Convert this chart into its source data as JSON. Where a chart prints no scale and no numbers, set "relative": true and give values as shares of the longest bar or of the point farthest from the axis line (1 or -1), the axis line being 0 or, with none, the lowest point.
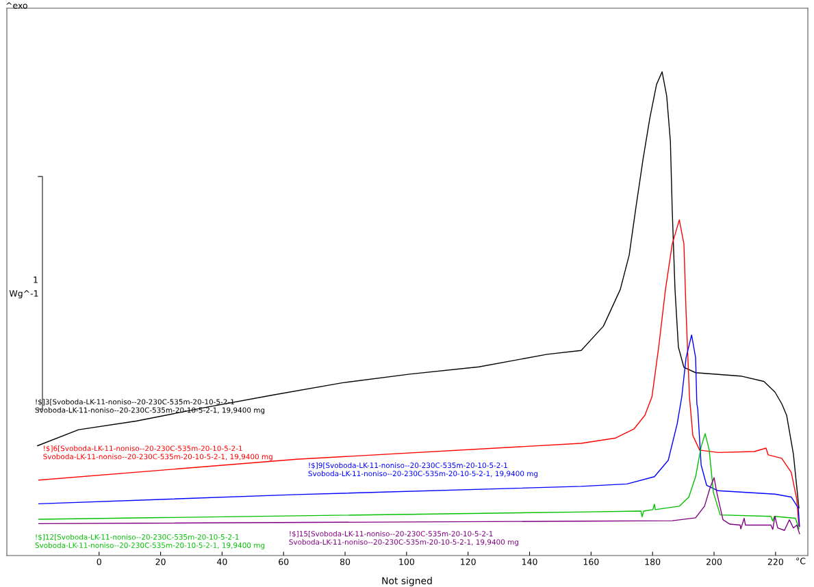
{
  "chart_data": {
    "type": "line",
    "relative": true,
    "xlabel": "°C",
    "grid": false,
    "legend": false,
    "marker": "none",
    "line_style": "solid",
    "tick_labels": "x",
    "xlim": [
      -30,
      230.5
    ],
    "xticks": [
      0,
      20,
      40,
      60,
      80,
      100,
      120,
      140,
      160,
      180,
      200,
      220
    ],
    "annotations": [
      "^exo",
      "1",
      "Wg^-1",
      "Not signed"
    ],
    "series": [
      {
        "name": "!$]3[Svoboda-LK-11-noniso--20-230C-535m-20-10-5-2-1\nSvoboda-LK-11-noniso--20-230C-535m-20-10-5-2-1, 19,9400 mg",
        "color": "#000000",
        "x": [
          -20,
          -6.7,
          12,
          34.5,
          56.7,
          79,
          101,
          123.5,
          145.7,
          156.8,
          164,
          169.5,
          172.4,
          174.6,
          176.9,
          179.1,
          181.3,
          183.1,
          184.6,
          185.8,
          186.4,
          187.3,
          188.4,
          190.2,
          194,
          208.7,
          216.2,
          219.8,
          222,
          223.6,
          225.8,
          227.6
        ],
        "values": [
          0.227,
          0.26,
          0.278,
          0.306,
          0.332,
          0.357,
          0.375,
          0.39,
          0.416,
          0.424,
          0.474,
          0.55,
          0.621,
          0.72,
          0.819,
          0.904,
          0.974,
          1.0,
          0.95,
          0.856,
          0.714,
          0.55,
          0.431,
          0.389,
          0.378,
          0.371,
          0.36,
          0.338,
          0.314,
          0.29,
          0.21,
          0.098
        ]
      },
      {
        "name": "!$]6[Svoboda-LK-11-noniso--20-230C-535m-20-10-5-2-1\nSvoboda-LK-11-noniso--20-230C-535m-20-10-5-2-1, 19,9400 mg",
        "color": "#ff0000",
        "x": [
          -19.6,
          64.3,
          156.8,
          168,
          174,
          177.5,
          179.8,
          182,
          184.2,
          186.4,
          188.7,
          190.2,
          190.9,
          191.8,
          192,
          193.1,
          195.3,
          201.3,
          213.1,
          216.9,
          217.6,
          222,
          225.1,
          226.9,
          227.6
        ],
        "values": [
          0.156,
          0.199,
          0.232,
          0.243,
          0.262,
          0.29,
          0.328,
          0.431,
          0.55,
          0.644,
          0.694,
          0.644,
          0.503,
          0.36,
          0.328,
          0.248,
          0.218,
          0.213,
          0.215,
          0.222,
          0.208,
          0.201,
          0.172,
          0.116,
          0.06
        ]
      },
      {
        "name": "!$]9[Svoboda-LK-11-noniso--20-230C-535m-20-10-5-2-1\nSvoboda-LK-11-noniso--20-230C-535m-20-10-5-2-1, 19,9400 mg",
        "color": "#0000ff",
        "x": [
          -19.6,
          64.3,
          156.8,
          171.7,
          180.6,
          185.1,
          188,
          189.5,
          190.9,
          192.7,
          194,
          194.4,
          194.7,
          195.8,
          197.6,
          201.3,
          219.8,
          225.1,
          227.4,
          227.8
        ],
        "values": [
          0.107,
          0.126,
          0.143,
          0.148,
          0.163,
          0.197,
          0.272,
          0.328,
          0.409,
          0.456,
          0.409,
          0.314,
          0.303,
          0.187,
          0.145,
          0.134,
          0.127,
          0.121,
          0.098,
          0.06
        ]
      },
      {
        "name": "!$]12[Svoboda-LK-11-noniso--20-230C-535m-20-10-5-2-1\nSvoboda-LK-11-noniso--20-230C-535m-20-10-5-2-1, 19,9400 mg",
        "color": "#00c000",
        "x": [
          -19.6,
          156.8,
          176.2,
          176.6,
          177.1,
          180.1,
          180.6,
          180.9,
          188.7,
          191.8,
          194,
          195.8,
          197.1,
          198.4,
          199.8,
          202,
          218.5,
          219.1,
          219.6,
          226.5,
          227.6
        ],
        "values": [
          0.075,
          0.09,
          0.092,
          0.08,
          0.092,
          0.095,
          0.106,
          0.095,
          0.102,
          0.121,
          0.163,
          0.225,
          0.252,
          0.219,
          0.13,
          0.084,
          0.081,
          0.071,
          0.081,
          0.077,
          0.055
        ]
      },
      {
        "name": "!$]15[Svoboda-LK-11-noniso--20-230C-535m-20-10-5-2-1\nSvoboda-LK-11-noniso--20-230C-535m-20-10-5-2-1, 19,9400 mg",
        "color": "#800080",
        "x": [
          -19.6,
          156.8,
          186.4,
          194,
          196.9,
          198.7,
          200,
          200.9,
          202.9,
          205.1,
          208.5,
          208.7,
          209.8,
          210.2,
          218.5,
          219.1,
          219.8,
          220.7,
          222.9,
          224.5,
          225.8,
          226.9,
          227.8
        ],
        "values": [
          0.066,
          0.071,
          0.072,
          0.078,
          0.102,
          0.14,
          0.161,
          0.13,
          0.074,
          0.065,
          0.063,
          0.055,
          0.077,
          0.063,
          0.063,
          0.054,
          0.081,
          0.057,
          0.052,
          0.074,
          0.057,
          0.063,
          0.045
        ]
      }
    ]
  }
}
